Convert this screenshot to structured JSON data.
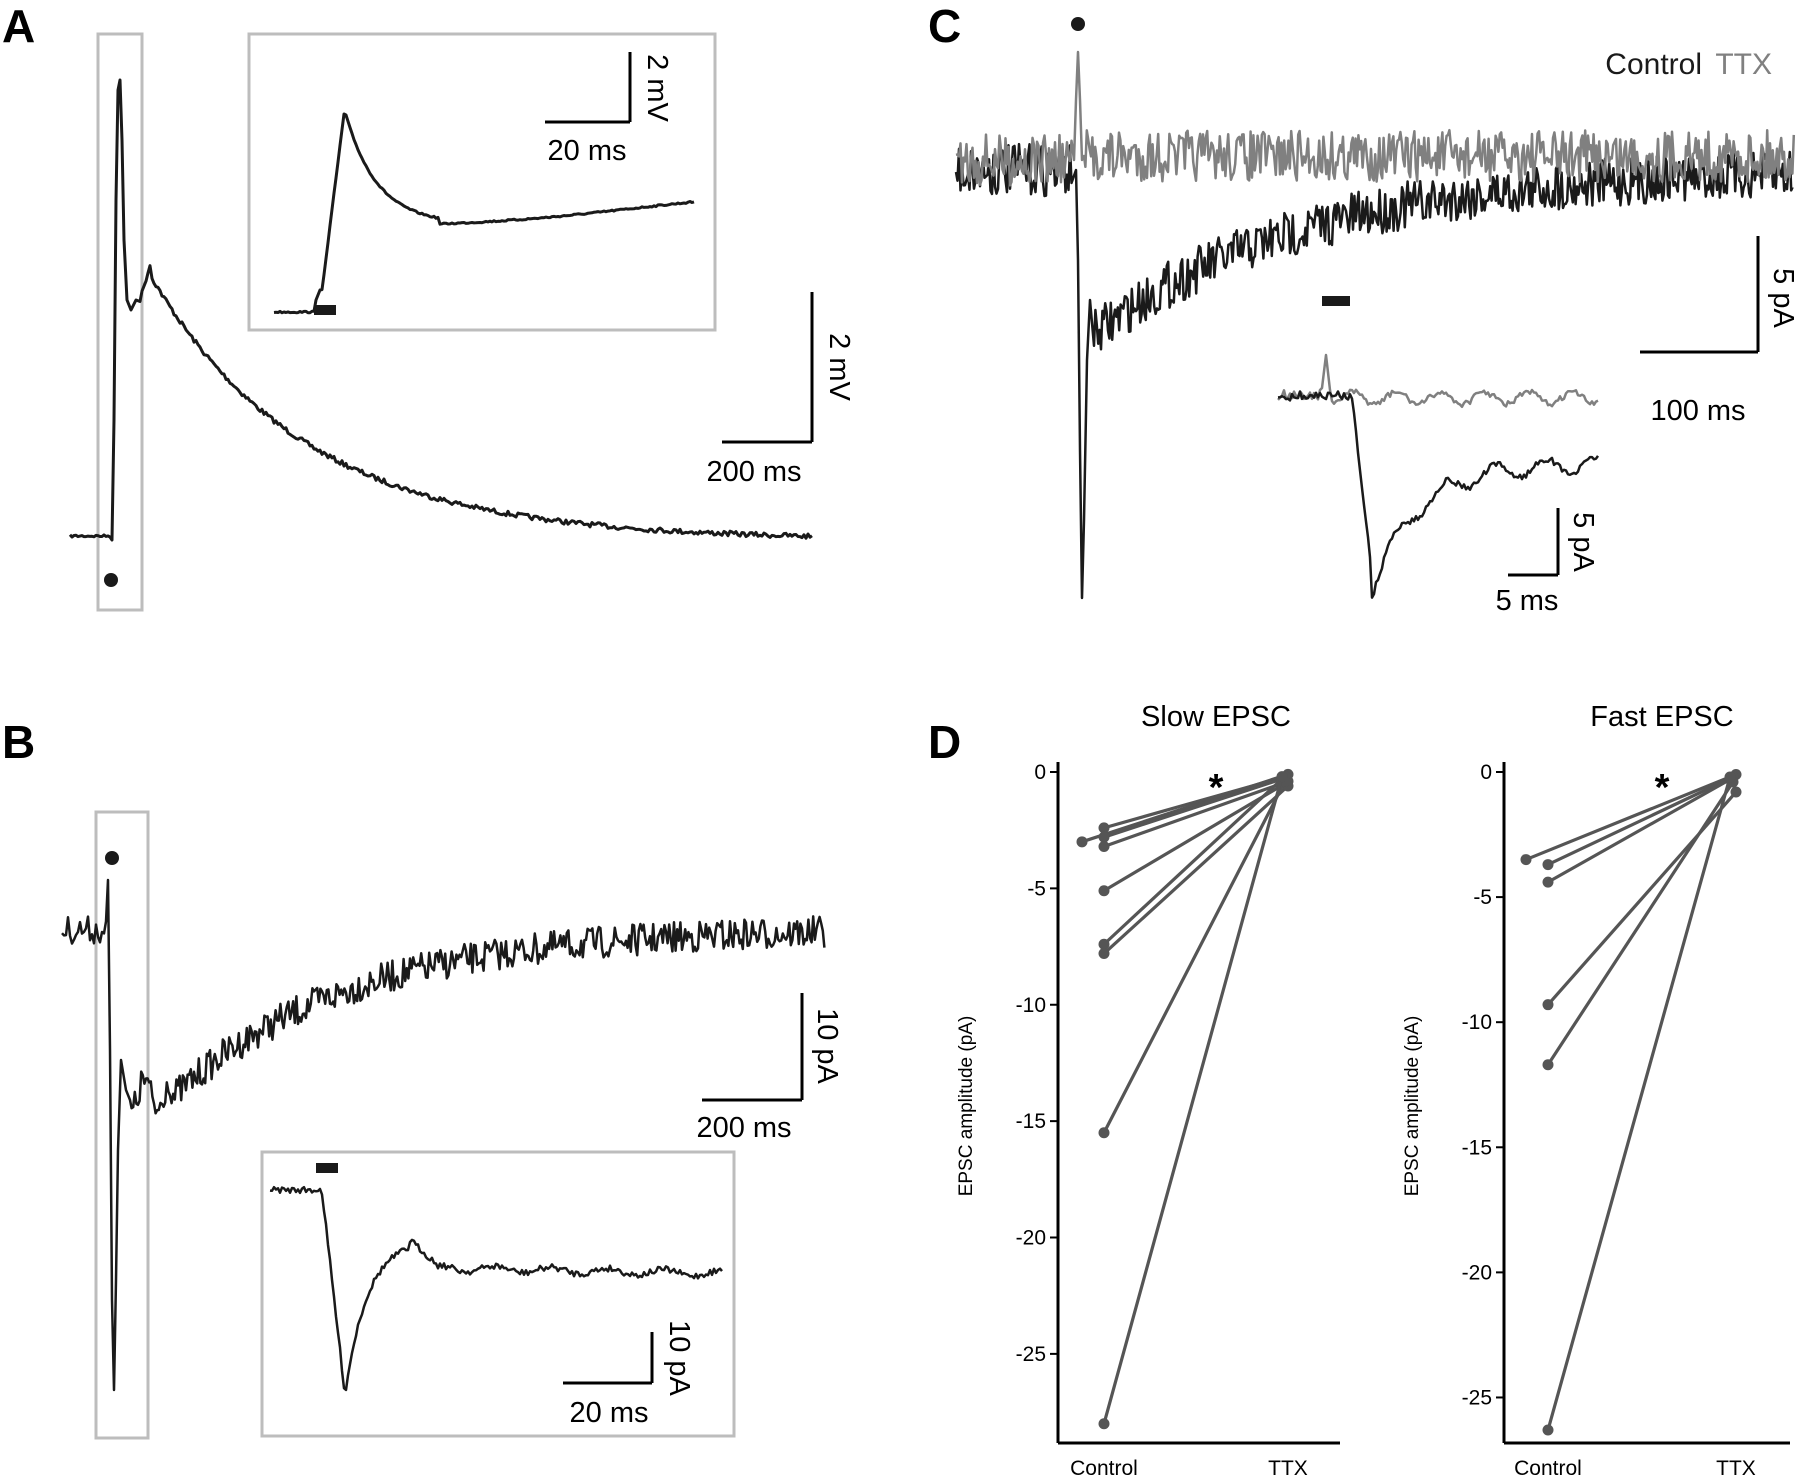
{
  "panels": {
    "A": {
      "label": "A",
      "scale_main": {
        "y": "2 mV",
        "x": "200 ms"
      },
      "scale_inset": {
        "y": "2 mV",
        "x": "20 ms"
      }
    },
    "B": {
      "label": "B",
      "scale_main": {
        "y": "10 pA",
        "x": "200 ms"
      },
      "scale_inset": {
        "y": "10 pA",
        "x": "20 ms"
      }
    },
    "C": {
      "label": "C",
      "legend": [
        {
          "name": "Control",
          "color": "#1a1a1a"
        },
        {
          "name": "TTX",
          "color": "#808080"
        }
      ],
      "scale_main": {
        "y": "5 pA",
        "x": "100 ms"
      },
      "scale_inset": {
        "y": "5 pA",
        "x": "5 ms"
      }
    },
    "D": {
      "label": "D"
    }
  },
  "colors": {
    "trace": "#1a1a1a",
    "ttx": "#808080",
    "box": "#bdbdbd",
    "points": "#555555"
  },
  "chart_data": [
    {
      "type": "scatter",
      "title": "Slow EPSC",
      "ylabel": "EPSC amplitude (pA)",
      "categories": [
        "Control",
        "TTX"
      ],
      "yticks": [
        "0",
        "-5",
        "-10",
        "-15",
        "-20",
        "-25"
      ],
      "ylim": [
        -28.7,
        0
      ],
      "significance": "*",
      "pairs": [
        {
          "control": -3.0,
          "ttx": -0.1
        },
        {
          "control": -2.4,
          "ttx": -0.2
        },
        {
          "control": -2.8,
          "ttx": -0.3
        },
        {
          "control": -3.2,
          "ttx": -0.4
        },
        {
          "control": -5.1,
          "ttx": -0.5
        },
        {
          "control": -7.4,
          "ttx": -0.3
        },
        {
          "control": -7.8,
          "ttx": -0.6
        },
        {
          "control": -15.5,
          "ttx": -0.4
        },
        {
          "control": -28.0,
          "ttx": -0.2
        }
      ]
    },
    {
      "type": "scatter",
      "title": "Fast EPSC",
      "ylabel": "EPSC amplitude (pA)",
      "categories": [
        "Control",
        "TTX"
      ],
      "yticks": [
        "0",
        "-5",
        "-10",
        "-15",
        "-20",
        "-25"
      ],
      "ylim": [
        -26.7,
        0
      ],
      "significance": "*",
      "pairs": [
        {
          "control": -3.5,
          "ttx": -0.1
        },
        {
          "control": -3.7,
          "ttx": -0.2
        },
        {
          "control": -4.4,
          "ttx": -0.3
        },
        {
          "control": -9.3,
          "ttx": -0.8
        },
        {
          "control": -11.7,
          "ttx": -0.4
        },
        {
          "control": -26.3,
          "ttx": -0.2
        }
      ]
    }
  ]
}
